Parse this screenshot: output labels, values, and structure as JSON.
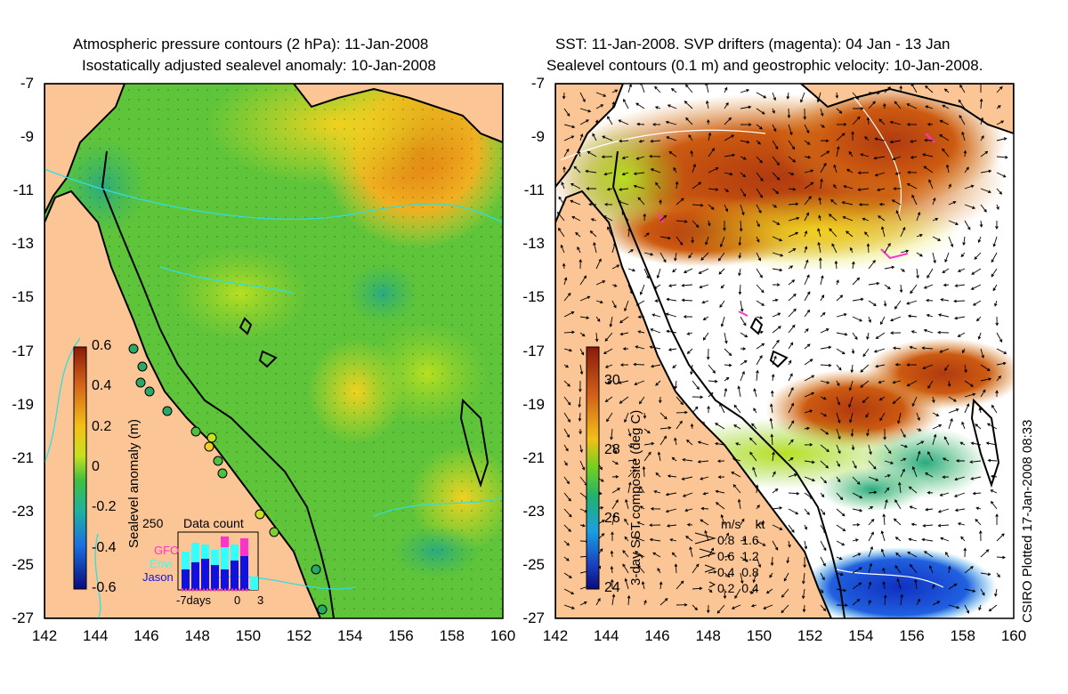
{
  "left_panel": {
    "title_line1": "Atmospheric pressure contours (2 hPa): 11-Jan-2008",
    "title_line2": "Isostatically adjusted sealevel anomaly: 10-Jan-2008",
    "y_ticks": [
      "-7",
      "-9",
      "-11",
      "-13",
      "-15",
      "-17",
      "-19",
      "-21",
      "-23",
      "-25",
      "-27"
    ],
    "x_ticks": [
      "142",
      "144",
      "146",
      "148",
      "150",
      "152",
      "154",
      "156",
      "158",
      "160"
    ],
    "colorbar": {
      "label": "Sealevel anomaly (m)",
      "ticks": [
        "0.6",
        "0.4",
        "0.2",
        "0",
        "-0.2",
        "-0.4",
        "-0.6"
      ],
      "range": [
        -0.6,
        0.6
      ]
    },
    "data_count": {
      "title": "Data count",
      "y_max_label": "250",
      "x_labels": [
        "-7days",
        "0",
        "3"
      ],
      "legend": [
        {
          "label": "GFO",
          "color": "#ff33cc"
        },
        {
          "label": "Envi",
          "color": "#33ffff"
        },
        {
          "label": "Jason",
          "color": "#1111dd"
        }
      ]
    }
  },
  "right_panel": {
    "title_line1": "SST: 11-Jan-2008. SVP drifters (magenta): 04 Jan - 13 Jan",
    "title_line2": "Sealevel contours (0.1 m) and geostrophic velocity: 10-Jan-2008.",
    "y_ticks": [
      "-7",
      "-9",
      "-11",
      "-13",
      "-15",
      "-17",
      "-19",
      "-21",
      "-23",
      "-25",
      "-27"
    ],
    "x_ticks": [
      "142",
      "144",
      "146",
      "148",
      "150",
      "152",
      "154",
      "156",
      "158",
      "160"
    ],
    "colorbar": {
      "label": "3-day SST composite (deg C)",
      "ticks": [
        "30",
        "28",
        "26",
        "24"
      ],
      "range": [
        24,
        31
      ]
    },
    "velocity_legend": {
      "header_ms": "m/s",
      "header_kt": "kt",
      "rows": [
        {
          "ms": "0.8",
          "kt": "1.6"
        },
        {
          "ms": "0.6",
          "kt": "1.2"
        },
        {
          "ms": "0.4",
          "kt": "0.8"
        },
        {
          "ms": "0.2",
          "kt": "0.4"
        }
      ]
    }
  },
  "credit": "CSIRO Plotted 17-Jan-2008 08:33",
  "colors": {
    "land": "#fcc595",
    "coastline": "#000000",
    "pressure_contour": "#33dddd",
    "drifter": "#ff33cc"
  }
}
